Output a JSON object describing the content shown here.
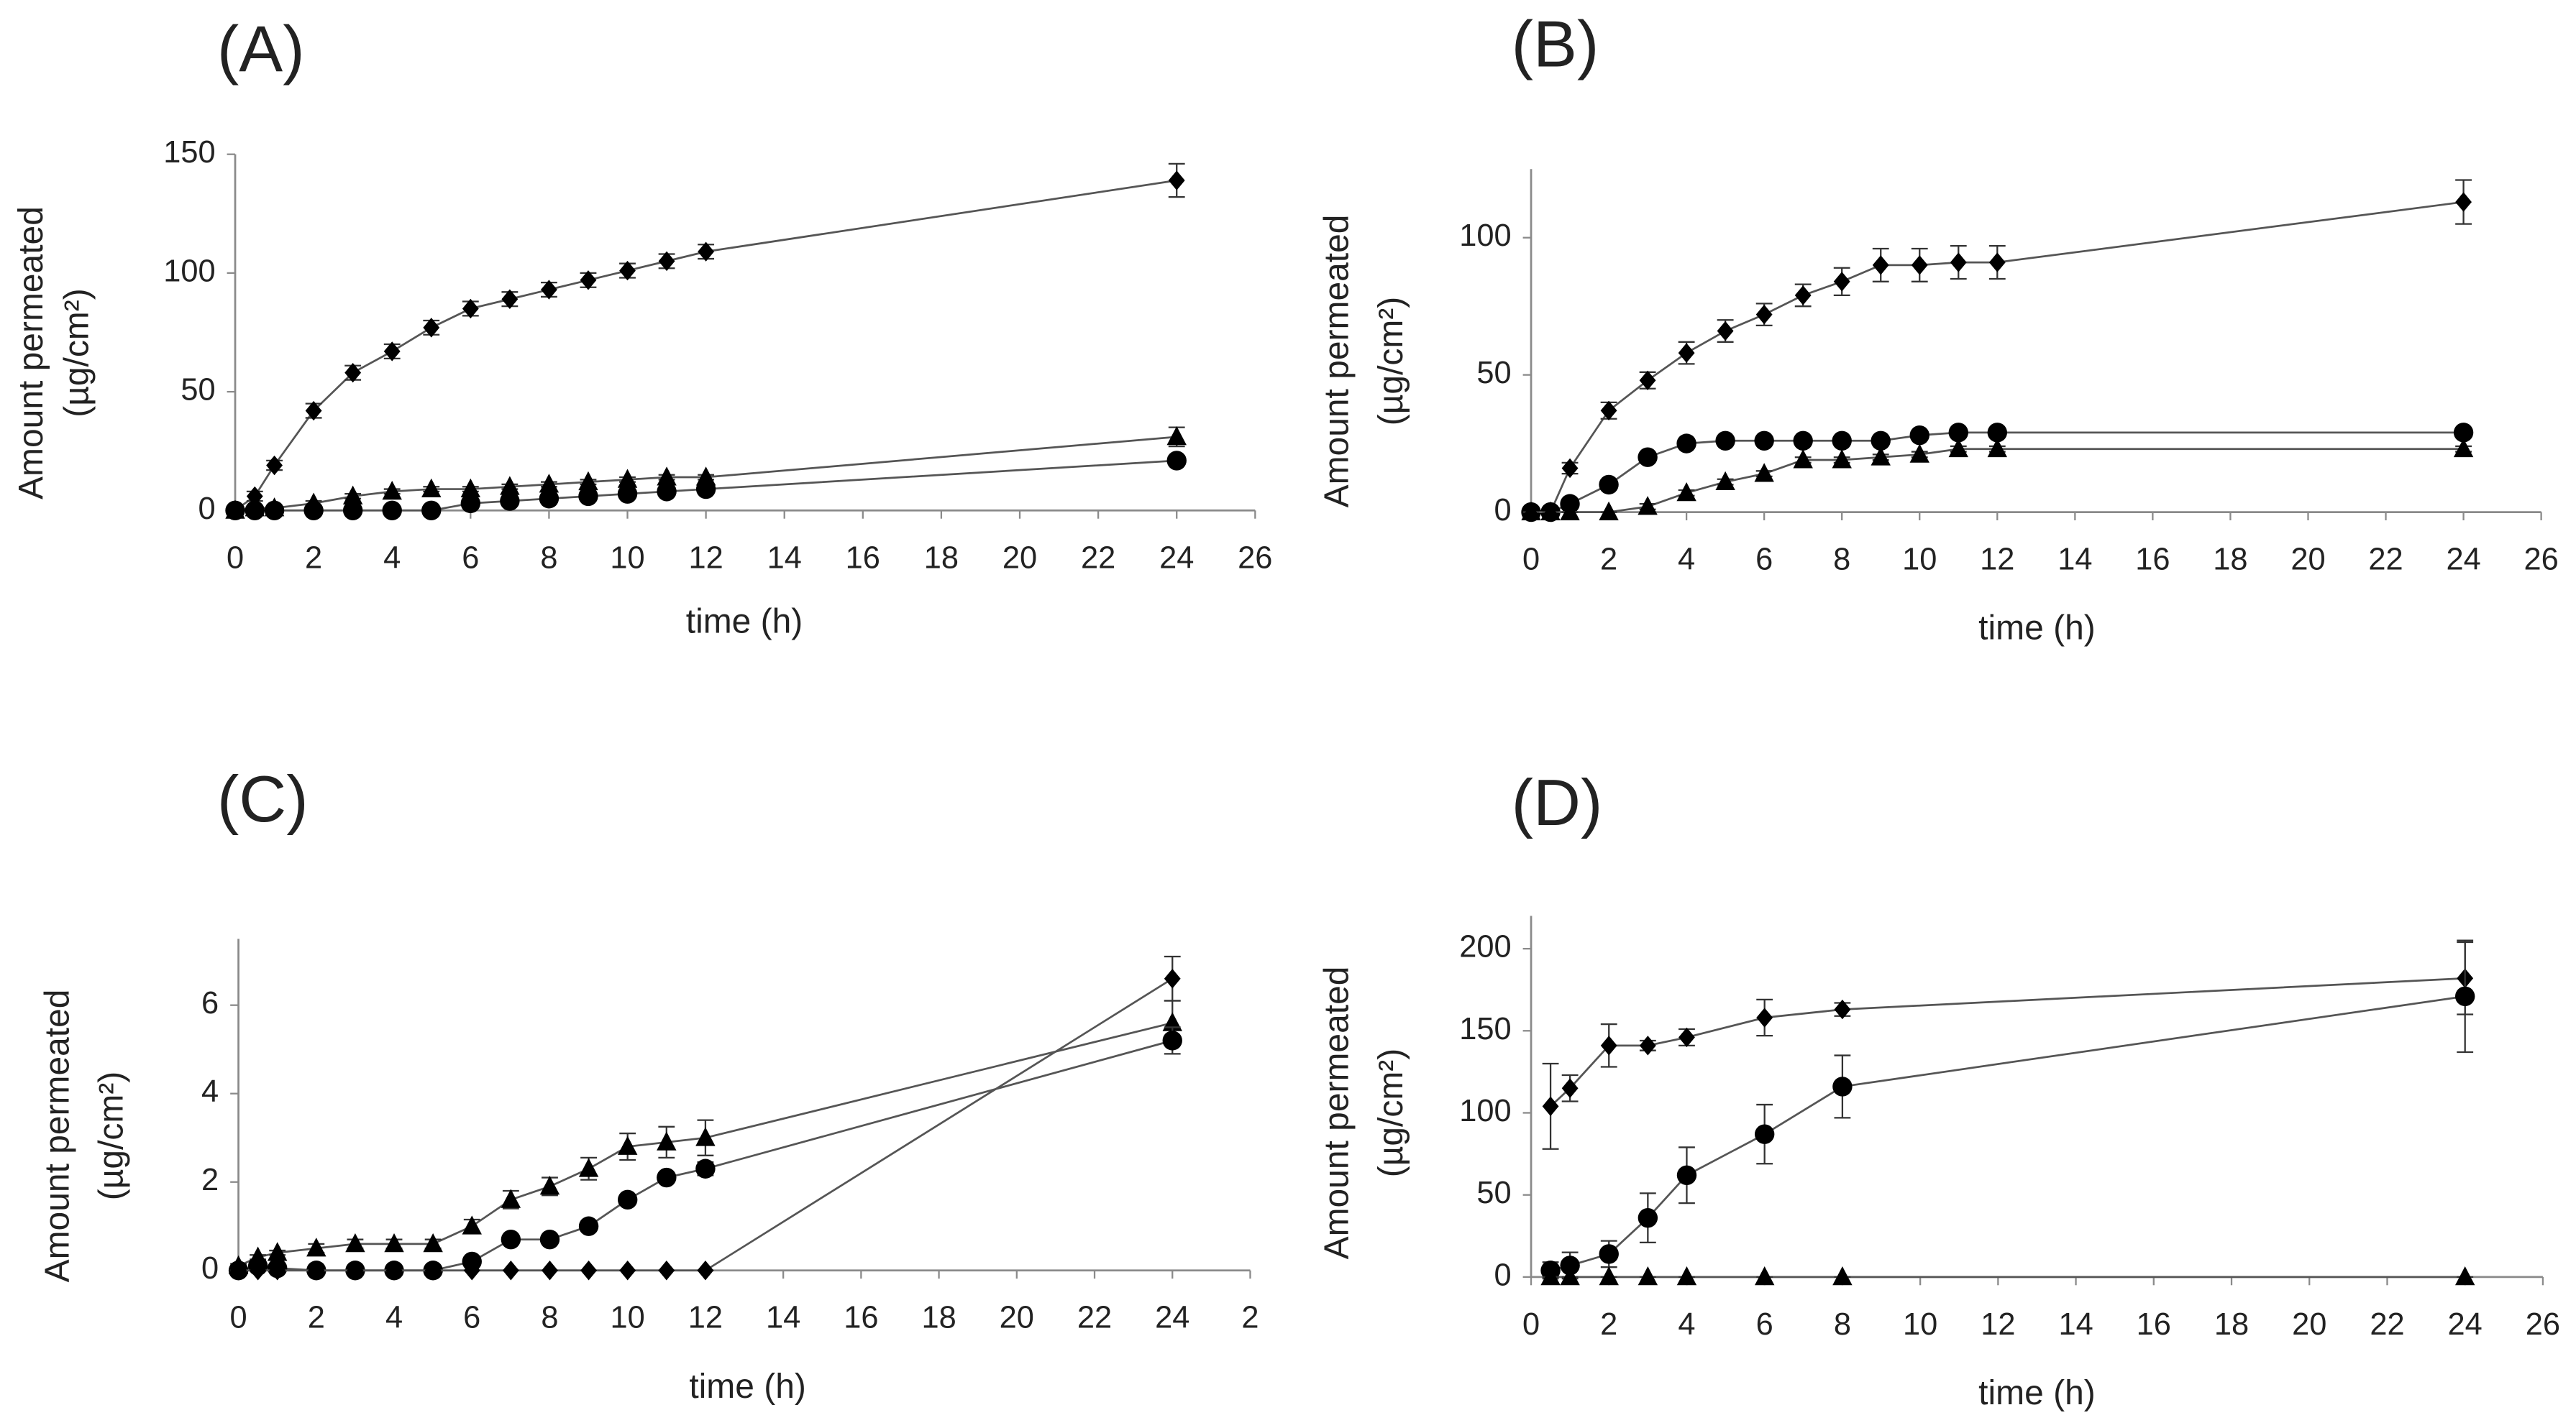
{
  "chart_data": [
    {
      "type": "line",
      "title": "(A)",
      "xlabel": "time (h)",
      "ylabel": [
        "Amount permeated",
        "(µg/cm²)"
      ],
      "x": [
        0,
        0.5,
        1,
        2,
        3,
        4,
        5,
        6,
        7,
        8,
        9,
        10,
        11,
        12,
        24
      ],
      "xlim": [
        0,
        26
      ],
      "xticks": [
        0,
        2,
        4,
        6,
        8,
        10,
        12,
        14,
        16,
        18,
        20,
        22,
        24,
        26
      ],
      "ylim": [
        0,
        150
      ],
      "yticks": [
        0,
        50,
        100,
        150
      ],
      "series": [
        {
          "marker": "diamond",
          "color": "#000000",
          "values": [
            0,
            6,
            19,
            42,
            58,
            67,
            77,
            85,
            89,
            93,
            97,
            101,
            105,
            109,
            139
          ],
          "errors": [
            0,
            2,
            2,
            3,
            3,
            3,
            3,
            3,
            3,
            3,
            3,
            3,
            3,
            3,
            7
          ]
        },
        {
          "marker": "triangle",
          "color": "#000000",
          "values": [
            0,
            1,
            1,
            3,
            6,
            8,
            9,
            9,
            10,
            11,
            12,
            13,
            14,
            14,
            31
          ],
          "errors": [
            0,
            1,
            1,
            1,
            1,
            1,
            1,
            1,
            1,
            1,
            1,
            1,
            1,
            1,
            4
          ]
        },
        {
          "marker": "circle",
          "color": "#000000",
          "values": [
            0,
            0,
            0,
            0,
            0,
            0,
            0,
            3,
            4,
            5,
            6,
            7,
            8,
            9,
            21
          ],
          "errors": [
            0,
            0,
            0,
            0,
            0,
            0,
            0,
            1,
            1,
            1,
            1,
            1,
            1,
            1,
            2
          ]
        }
      ]
    },
    {
      "type": "line",
      "title": "(B)",
      "xlabel": "time (h)",
      "ylabel": [
        "Amount permeated",
        "(µg/cm²)"
      ],
      "x": [
        0,
        0.5,
        1,
        2,
        3,
        4,
        5,
        6,
        7,
        8,
        9,
        10,
        11,
        12,
        24
      ],
      "xlim": [
        0,
        26
      ],
      "xticks": [
        0,
        2,
        4,
        6,
        8,
        10,
        12,
        14,
        16,
        18,
        20,
        22,
        24,
        26
      ],
      "ylim": [
        0,
        125
      ],
      "yticks": [
        0,
        50,
        100
      ],
      "series": [
        {
          "marker": "diamond",
          "color": "#000000",
          "values": [
            0,
            0,
            16,
            37,
            48,
            58,
            66,
            72,
            79,
            84,
            90,
            90,
            91,
            91,
            113
          ],
          "errors": [
            0,
            0,
            2,
            3,
            3,
            4,
            4,
            4,
            4,
            5,
            6,
            6,
            6,
            6,
            8
          ]
        },
        {
          "marker": "circle",
          "color": "#000000",
          "values": [
            0,
            0,
            3,
            10,
            20,
            25,
            26,
            26,
            26,
            26,
            26,
            28,
            29,
            29,
            29
          ],
          "errors": [
            0,
            0,
            1,
            1,
            1,
            1,
            1,
            1,
            1,
            1,
            1,
            1,
            1,
            1,
            1
          ]
        },
        {
          "marker": "triangle",
          "color": "#000000",
          "values": [
            0,
            0,
            0,
            0,
            2,
            7,
            11,
            14,
            19,
            19,
            20,
            21,
            23,
            23,
            23
          ],
          "errors": [
            0,
            0,
            0,
            0,
            1,
            1,
            1,
            1,
            1,
            1,
            1,
            1,
            1,
            1,
            1
          ]
        }
      ]
    },
    {
      "type": "line",
      "title": "(C)",
      "xlabel": "time (h)",
      "ylabel": [
        "Amount permeated",
        "(µg/cm²)"
      ],
      "x": [
        0,
        0.5,
        1,
        2,
        3,
        4,
        5,
        6,
        7,
        8,
        9,
        10,
        11,
        12,
        24
      ],
      "xlim": [
        0,
        26
      ],
      "xticks": [
        0,
        2,
        4,
        6,
        8,
        10,
        12,
        14,
        16,
        18,
        20,
        22,
        24,
        {
          "value": 26,
          "label": "2"
        }
      ],
      "ylim": [
        0,
        7.5
      ],
      "yticks": [
        0,
        2,
        4,
        6
      ],
      "series": [
        {
          "marker": "triangle",
          "color": "#000000",
          "values": [
            0.1,
            0.3,
            0.4,
            0.5,
            0.6,
            0.6,
            0.6,
            1.0,
            1.6,
            1.9,
            2.3,
            2.8,
            2.9,
            3.0,
            5.6
          ],
          "errors": [
            0.05,
            0.05,
            0.05,
            0.1,
            0.1,
            0.1,
            0.1,
            0.15,
            0.2,
            0.2,
            0.25,
            0.3,
            0.35,
            0.4,
            0.5
          ]
        },
        {
          "marker": "circle",
          "color": "#000000",
          "values": [
            0,
            0.1,
            0.05,
            0,
            0,
            0,
            0,
            0.2,
            0.7,
            0.7,
            1.0,
            1.6,
            2.1,
            2.3,
            5.2
          ],
          "errors": [
            0,
            0.05,
            0.05,
            0,
            0,
            0,
            0,
            0.05,
            0.1,
            0.1,
            0.1,
            0.1,
            0.1,
            0.15,
            0.3
          ]
        },
        {
          "marker": "diamond",
          "color": "#000000",
          "values": [
            0,
            0,
            0,
            0,
            0,
            0,
            0,
            0,
            0,
            0,
            0,
            0,
            0,
            0,
            6.6
          ],
          "errors": [
            0,
            0,
            0,
            0,
            0,
            0,
            0,
            0,
            0,
            0,
            0,
            0,
            0,
            0,
            0.5
          ]
        }
      ]
    },
    {
      "type": "line",
      "title": "(D)",
      "xlabel": "time (h)",
      "ylabel": [
        "Amount permeated",
        "(µg/cm²)"
      ],
      "x": [
        0.5,
        1,
        2,
        3,
        4,
        6,
        8,
        24
      ],
      "xlim": [
        0,
        26
      ],
      "xticks": [
        0,
        2,
        4,
        6,
        8,
        10,
        12,
        14,
        16,
        18,
        20,
        22,
        24,
        26
      ],
      "ylim": [
        0,
        220
      ],
      "yticks": [
        0,
        50,
        100,
        150,
        200
      ],
      "series": [
        {
          "marker": "diamond",
          "color": "#000000",
          "values": [
            104,
            115,
            141,
            141,
            146,
            158,
            163,
            182
          ],
          "errors": [
            26,
            8,
            13,
            3,
            5,
            11,
            4,
            22
          ]
        },
        {
          "marker": "circle",
          "color": "#000000",
          "values": [
            4,
            7,
            14,
            36,
            62,
            87,
            116,
            171
          ],
          "errors": [
            5,
            8,
            8,
            15,
            17,
            18,
            19,
            34
          ]
        },
        {
          "marker": "triangle",
          "color": "#000000",
          "values": [
            0,
            0,
            0,
            0,
            0,
            0,
            0,
            0
          ],
          "errors": [
            0,
            0,
            0,
            0,
            0,
            0,
            0,
            0
          ]
        }
      ]
    }
  ]
}
